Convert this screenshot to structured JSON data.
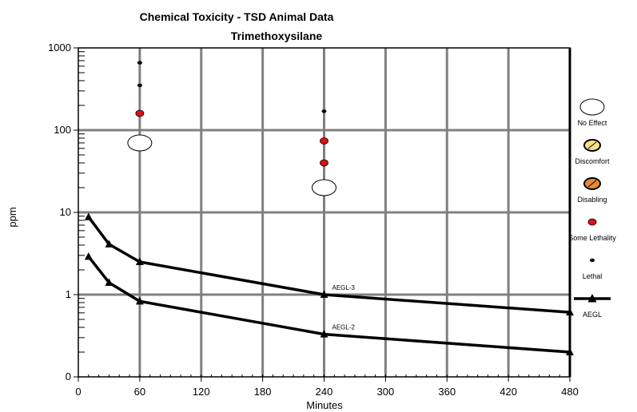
{
  "chart_data": {
    "type": "scatter",
    "title": "Chemical Toxicity - TSD Animal Data",
    "subtitle": "Trimethoxysilane",
    "xlabel": "Minutes",
    "ylabel": "ppm",
    "xlim": [
      0,
      480
    ],
    "ylim": [
      0,
      1000
    ],
    "y_scale": "log",
    "x_ticks": [
      0,
      60,
      120,
      180,
      240,
      300,
      360,
      420,
      480
    ],
    "x_tick_labels": [
      "0",
      "60",
      "120",
      "180",
      "240",
      "300",
      "360",
      "420",
      "480"
    ],
    "y_ticks": [
      0,
      1,
      10,
      100,
      1000
    ],
    "y_tick_labels": [
      "0",
      "1",
      "10",
      "100",
      "1000"
    ],
    "grid": true,
    "legend_position": "right",
    "legend": [
      {
        "name": "No Effect",
        "marker": "large-open-circle",
        "color": "#ffffff"
      },
      {
        "name": "Discomfort",
        "marker": "hatched-circle",
        "color": "#f5e08a"
      },
      {
        "name": "Disabling",
        "marker": "hatched-circle",
        "color": "#e8883a"
      },
      {
        "name": "Some Lethality",
        "marker": "filled-circle",
        "color": "#e01010"
      },
      {
        "name": "Lethal",
        "marker": "small-dot",
        "color": "#000000"
      },
      {
        "name": "AEGL",
        "marker": "line-triangle",
        "color": "#000000"
      }
    ],
    "points": [
      {
        "category": "No Effect",
        "x": 60,
        "y": 70
      },
      {
        "category": "No Effect",
        "x": 240,
        "y": 20
      },
      {
        "category": "Some Lethality",
        "x": 60,
        "y": 160
      },
      {
        "category": "Some Lethality",
        "x": 240,
        "y": 74
      },
      {
        "category": "Some Lethality",
        "x": 240,
        "y": 40
      },
      {
        "category": "Lethal",
        "x": 60,
        "y": 660
      },
      {
        "category": "Lethal",
        "x": 60,
        "y": 350
      },
      {
        "category": "Lethal",
        "x": 240,
        "y": 170
      }
    ],
    "series": [
      {
        "name": "AEGL-3",
        "x": [
          10,
          30,
          60,
          240,
          480
        ],
        "y": [
          8.8,
          4.1,
          2.5,
          1.0,
          0.61
        ]
      },
      {
        "name": "AEGL-2",
        "x": [
          10,
          30,
          60,
          240,
          480
        ],
        "y": [
          2.9,
          1.4,
          0.83,
          0.33,
          0.2
        ]
      }
    ]
  }
}
